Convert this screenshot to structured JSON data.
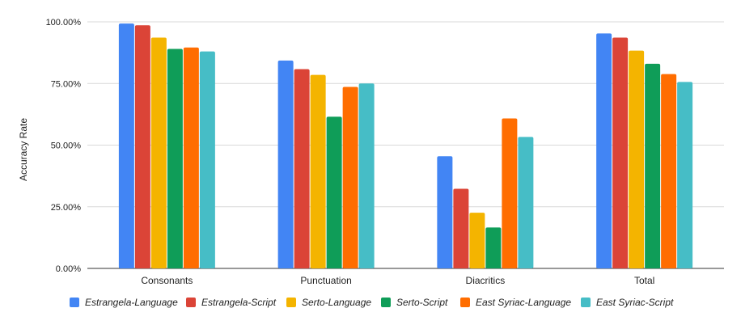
{
  "chart_data": {
    "type": "bar",
    "title": "",
    "xlabel": "",
    "ylabel": "Accuracy Rate",
    "categories": [
      "Consonants",
      "Punctuation",
      "Diacritics",
      "Total"
    ],
    "ylim": [
      0,
      100
    ],
    "yticks": [
      0,
      25,
      50,
      75,
      100
    ],
    "ytick_labels": [
      "0.00%",
      "25.00%",
      "50.00%",
      "75.00%",
      "100.00%"
    ],
    "grid": true,
    "legend_position": "bottom",
    "series": [
      {
        "name": "Estrangela-Language",
        "color": "#4285f4",
        "values": [
          99.3,
          84.3,
          45.5,
          95.3
        ]
      },
      {
        "name": "Estrangela-Script",
        "color": "#db4437",
        "values": [
          98.6,
          80.8,
          32.3,
          93.6
        ]
      },
      {
        "name": "Serto-Language",
        "color": "#f4b400",
        "values": [
          93.6,
          78.5,
          22.6,
          88.3
        ]
      },
      {
        "name": "Serto-Script",
        "color": "#0f9d58",
        "values": [
          89.0,
          61.5,
          16.6,
          83.0
        ]
      },
      {
        "name": "East Syriac-Language",
        "color": "#ff6d00",
        "values": [
          89.6,
          73.6,
          60.8,
          78.8
        ]
      },
      {
        "name": "East Syriac-Script",
        "color": "#46bdc6",
        "values": [
          88.0,
          75.0,
          53.3,
          75.6
        ]
      }
    ]
  }
}
